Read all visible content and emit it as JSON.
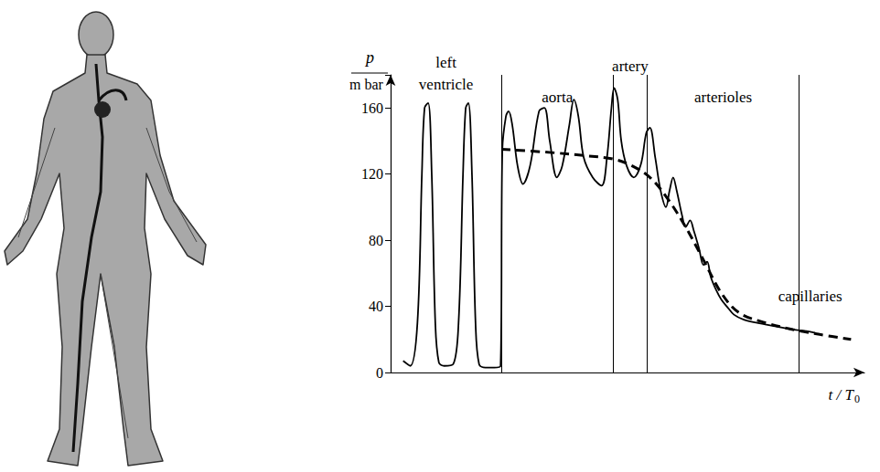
{
  "chart_data": {
    "type": "line",
    "ylabel": {
      "numerator": "p",
      "denominator": "m bar"
    },
    "xlabel": {
      "base": "t / T",
      "subscript": "0"
    },
    "xlim": [
      0,
      53
    ],
    "ylim": [
      0,
      180
    ],
    "yticks": [
      0,
      40,
      80,
      120,
      160
    ],
    "tick_labels": "y",
    "grid": false,
    "regions": [
      "left ventricle",
      "aorta",
      "artery",
      "arterioles",
      "capillaries"
    ],
    "boundaries": [
      12.4,
      24.9,
      28.7,
      45.7
    ],
    "series": [
      {
        "color": "#000000",
        "line_style": "solid",
        "x": [
          1.4,
          2.2,
          3.0,
          3.5,
          3.8,
          4.2,
          4.6,
          5.0,
          5.4,
          6.0,
          7.0,
          7.6,
          8.1,
          8.4,
          8.7,
          9.1,
          9.5,
          9.9,
          10.6,
          11.6,
          12.3,
          12.5,
          12.9,
          13.2,
          13.6,
          14.2,
          14.8,
          15.6,
          16.6,
          17.2,
          17.8,
          18.6,
          19.2,
          20.0,
          20.5,
          21.0,
          21.6,
          22.6,
          23.6,
          24.2,
          24.7,
          25.0,
          25.4,
          25.8,
          26.4,
          27.2,
          28.0,
          28.6,
          29.0,
          29.6,
          30.2,
          30.8,
          31.2,
          31.6,
          32.0,
          32.6,
          33.0,
          33.5,
          33.9,
          34.5,
          35.0,
          35.4,
          35.8,
          36.4,
          37.0,
          37.6,
          38.4,
          39.5,
          41.0,
          43.0,
          45.0,
          46.5,
          47.5
        ],
        "values": [
          7,
          4,
          30,
          120,
          160,
          163,
          120,
          30,
          6,
          4,
          5,
          30,
          120,
          160,
          163,
          120,
          30,
          5,
          3,
          3,
          4,
          135,
          155,
          158,
          150,
          125,
          114,
          125,
          158,
          160,
          140,
          118,
          125,
          150,
          165,
          155,
          130,
          118,
          113,
          130,
          160,
          172,
          165,
          140,
          125,
          118,
          126,
          145,
          148,
          130,
          110,
          100,
          110,
          118,
          110,
          95,
          88,
          92,
          86,
          75,
          65,
          67,
          58,
          50,
          44,
          40,
          35,
          32,
          30,
          28,
          26,
          25,
          24
        ]
      },
      {
        "color": "#000000",
        "line_style": "dashed",
        "x": [
          12.4,
          18.0,
          22.0,
          25.0,
          27.0,
          29.0,
          31.0,
          33.0,
          35.0,
          37.0,
          39.0,
          42.0,
          45.0,
          48.0,
          51.5
        ],
        "values": [
          135,
          133,
          131,
          129,
          125,
          118,
          105,
          88,
          68,
          48,
          36,
          30,
          26,
          23,
          20
        ]
      }
    ]
  }
}
